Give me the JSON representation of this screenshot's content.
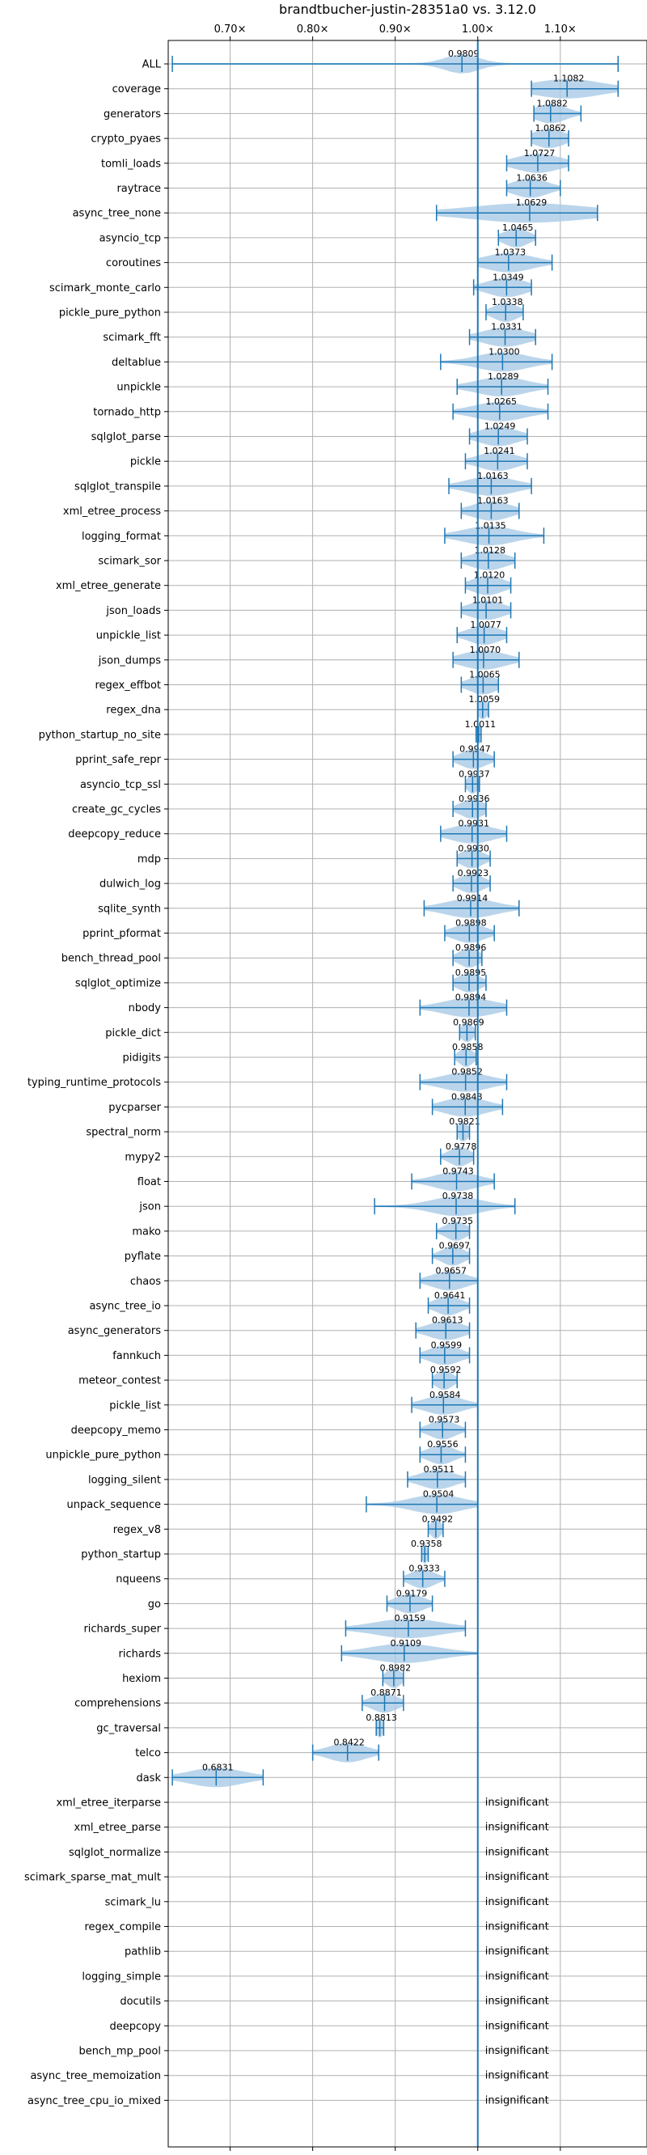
{
  "chart_data": {
    "type": "violin",
    "title": "brandtbucher-justin-28351a0 vs. 3.12.0",
    "xlabel": "",
    "ylabel": "",
    "xlim": [
      0.625,
      1.205
    ],
    "xticks": [
      0.7,
      0.8,
      0.9,
      1.0,
      1.1
    ],
    "xtick_labels": [
      "0.70×",
      "0.80×",
      "0.90×",
      "1.00×",
      "1.10×"
    ],
    "reference_line": 1.0,
    "grid": true,
    "insignificant_label": "insignificant",
    "colors": {
      "violin": "#a9cbe6",
      "line": "#1f77b4",
      "grid": "#b0b0b0"
    },
    "benchmarks": [
      {
        "name": "ALL",
        "mean": 0.9809,
        "min": 0.63,
        "max": 1.17,
        "spread": 0.02,
        "label": "0.9809"
      },
      {
        "name": "coverage",
        "mean": 1.1082,
        "min": 1.065,
        "max": 1.17,
        "spread": 0.04,
        "label": "1.1082"
      },
      {
        "name": "generators",
        "mean": 1.0882,
        "min": 1.068,
        "max": 1.125,
        "spread": 0.018,
        "label": "1.0882"
      },
      {
        "name": "crypto_pyaes",
        "mean": 1.0862,
        "min": 1.065,
        "max": 1.11,
        "spread": 0.018,
        "label": "1.0862"
      },
      {
        "name": "tomli_loads",
        "mean": 1.0727,
        "min": 1.035,
        "max": 1.11,
        "spread": 0.025,
        "label": "1.0727"
      },
      {
        "name": "raytrace",
        "mean": 1.0636,
        "min": 1.035,
        "max": 1.1,
        "spread": 0.02,
        "label": "1.0636"
      },
      {
        "name": "async_tree_none",
        "mean": 1.0629,
        "min": 0.95,
        "max": 1.145,
        "spread": 0.07,
        "label": "1.0629"
      },
      {
        "name": "asyncio_tcp",
        "mean": 1.0465,
        "min": 1.025,
        "max": 1.07,
        "spread": 0.014,
        "label": "1.0465"
      },
      {
        "name": "coroutines",
        "mean": 1.0373,
        "min": 1.0,
        "max": 1.09,
        "spread": 0.028,
        "label": "1.0373"
      },
      {
        "name": "scimark_monte_carlo",
        "mean": 1.0349,
        "min": 0.995,
        "max": 1.065,
        "spread": 0.022,
        "label": "1.0349"
      },
      {
        "name": "pickle_pure_python",
        "mean": 1.0338,
        "min": 1.01,
        "max": 1.055,
        "spread": 0.014,
        "label": "1.0338"
      },
      {
        "name": "scimark_fft",
        "mean": 1.0331,
        "min": 0.99,
        "max": 1.07,
        "spread": 0.025,
        "label": "1.0331"
      },
      {
        "name": "deltablue",
        "mean": 1.03,
        "min": 0.955,
        "max": 1.09,
        "spread": 0.03,
        "label": "1.0300"
      },
      {
        "name": "unpickle",
        "mean": 1.0289,
        "min": 0.975,
        "max": 1.085,
        "spread": 0.03,
        "label": "1.0289"
      },
      {
        "name": "tornado_http",
        "mean": 1.0265,
        "min": 0.97,
        "max": 1.085,
        "spread": 0.03,
        "label": "1.0265"
      },
      {
        "name": "sqlglot_parse",
        "mean": 1.0249,
        "min": 0.99,
        "max": 1.06,
        "spread": 0.022,
        "label": "1.0249"
      },
      {
        "name": "pickle",
        "mean": 1.0241,
        "min": 0.985,
        "max": 1.06,
        "spread": 0.022,
        "label": "1.0241"
      },
      {
        "name": "sqlglot_transpile",
        "mean": 1.0163,
        "min": 0.965,
        "max": 1.065,
        "spread": 0.028,
        "label": "1.0163"
      },
      {
        "name": "xml_etree_process",
        "mean": 1.0163,
        "min": 0.98,
        "max": 1.05,
        "spread": 0.022,
        "label": "1.0163"
      },
      {
        "name": "logging_format",
        "mean": 1.0135,
        "min": 0.96,
        "max": 1.08,
        "spread": 0.03,
        "label": "1.0135"
      },
      {
        "name": "scimark_sor",
        "mean": 1.0128,
        "min": 0.98,
        "max": 1.045,
        "spread": 0.02,
        "label": "1.0128"
      },
      {
        "name": "xml_etree_generate",
        "mean": 1.012,
        "min": 0.985,
        "max": 1.04,
        "spread": 0.018,
        "label": "1.0120"
      },
      {
        "name": "json_loads",
        "mean": 1.0101,
        "min": 0.98,
        "max": 1.04,
        "spread": 0.02,
        "label": "1.0101"
      },
      {
        "name": "unpickle_list",
        "mean": 1.0077,
        "min": 0.975,
        "max": 1.035,
        "spread": 0.018,
        "label": "1.0077"
      },
      {
        "name": "json_dumps",
        "mean": 1.007,
        "min": 0.97,
        "max": 1.05,
        "spread": 0.025,
        "label": "1.0070"
      },
      {
        "name": "regex_effbot",
        "mean": 1.0065,
        "min": 0.98,
        "max": 1.025,
        "spread": 0.016,
        "label": "1.0065"
      },
      {
        "name": "regex_dna",
        "mean": 1.0059,
        "min": 1.0,
        "max": 1.013,
        "spread": 0.006,
        "label": "1.0059"
      },
      {
        "name": "python_startup_no_site",
        "mean": 1.0011,
        "min": 0.998,
        "max": 1.004,
        "spread": 0.003,
        "label": "1.0011"
      },
      {
        "name": "pprint_safe_repr",
        "mean": 0.9947,
        "min": 0.97,
        "max": 1.02,
        "spread": 0.015,
        "label": "0.9947"
      },
      {
        "name": "asyncio_tcp_ssl",
        "mean": 0.9937,
        "min": 0.985,
        "max": 1.002,
        "spread": 0.006,
        "label": "0.9937"
      },
      {
        "name": "create_gc_cycles",
        "mean": 0.9936,
        "min": 0.97,
        "max": 1.01,
        "spread": 0.014,
        "label": "0.9936"
      },
      {
        "name": "deepcopy_reduce",
        "mean": 0.9931,
        "min": 0.955,
        "max": 1.035,
        "spread": 0.025,
        "label": "0.9931"
      },
      {
        "name": "mdp",
        "mean": 0.993,
        "min": 0.975,
        "max": 1.015,
        "spread": 0.013,
        "label": "0.9930"
      },
      {
        "name": "dulwich_log",
        "mean": 0.9923,
        "min": 0.97,
        "max": 1.015,
        "spread": 0.014,
        "label": "0.9923"
      },
      {
        "name": "sqlite_synth",
        "mean": 0.9914,
        "min": 0.935,
        "max": 1.05,
        "spread": 0.03,
        "label": "0.9914"
      },
      {
        "name": "pprint_pformat",
        "mean": 0.9898,
        "min": 0.96,
        "max": 1.02,
        "spread": 0.018,
        "label": "0.9898"
      },
      {
        "name": "bench_thread_pool",
        "mean": 0.9896,
        "min": 0.97,
        "max": 1.005,
        "spread": 0.012,
        "label": "0.9896"
      },
      {
        "name": "sqlglot_optimize",
        "mean": 0.9895,
        "min": 0.97,
        "max": 1.01,
        "spread": 0.013,
        "label": "0.9895"
      },
      {
        "name": "nbody",
        "mean": 0.9894,
        "min": 0.93,
        "max": 1.035,
        "spread": 0.03,
        "label": "0.9894"
      },
      {
        "name": "pickle_dict",
        "mean": 0.9869,
        "min": 0.978,
        "max": 0.997,
        "spread": 0.007,
        "label": "0.9869"
      },
      {
        "name": "pidigits",
        "mean": 0.9858,
        "min": 0.972,
        "max": 0.998,
        "spread": 0.008,
        "label": "0.9858"
      },
      {
        "name": "typing_runtime_protocols",
        "mean": 0.9852,
        "min": 0.93,
        "max": 1.035,
        "spread": 0.028,
        "label": "0.9852"
      },
      {
        "name": "pycparser",
        "mean": 0.9848,
        "min": 0.945,
        "max": 1.03,
        "spread": 0.025,
        "label": "0.9848"
      },
      {
        "name": "spectral_norm",
        "mean": 0.9821,
        "min": 0.975,
        "max": 0.99,
        "spread": 0.006,
        "label": "0.9821"
      },
      {
        "name": "mypy2",
        "mean": 0.9778,
        "min": 0.955,
        "max": 0.995,
        "spread": 0.012,
        "label": "0.9778"
      },
      {
        "name": "float",
        "mean": 0.9743,
        "min": 0.92,
        "max": 1.02,
        "spread": 0.025,
        "label": "0.9743"
      },
      {
        "name": "json",
        "mean": 0.9738,
        "min": 0.875,
        "max": 1.045,
        "spread": 0.03,
        "label": "0.9738"
      },
      {
        "name": "mako",
        "mean": 0.9735,
        "min": 0.95,
        "max": 0.99,
        "spread": 0.012,
        "label": "0.9735"
      },
      {
        "name": "pyflate",
        "mean": 0.9697,
        "min": 0.945,
        "max": 0.99,
        "spread": 0.013,
        "label": "0.9697"
      },
      {
        "name": "chaos",
        "mean": 0.9657,
        "min": 0.93,
        "max": 1.0,
        "spread": 0.02,
        "label": "0.9657"
      },
      {
        "name": "async_tree_io",
        "mean": 0.9641,
        "min": 0.94,
        "max": 0.99,
        "spread": 0.015,
        "label": "0.9641"
      },
      {
        "name": "async_generators",
        "mean": 0.9613,
        "min": 0.925,
        "max": 0.99,
        "spread": 0.02,
        "label": "0.9613"
      },
      {
        "name": "fannkuch",
        "mean": 0.9599,
        "min": 0.93,
        "max": 0.99,
        "spread": 0.018,
        "label": "0.9599"
      },
      {
        "name": "meteor_contest",
        "mean": 0.9592,
        "min": 0.945,
        "max": 0.975,
        "spread": 0.01,
        "label": "0.9592"
      },
      {
        "name": "pickle_list",
        "mean": 0.9584,
        "min": 0.92,
        "max": 1.0,
        "spread": 0.022,
        "label": "0.9584"
      },
      {
        "name": "deepcopy_memo",
        "mean": 0.9573,
        "min": 0.93,
        "max": 0.985,
        "spread": 0.015,
        "label": "0.9573"
      },
      {
        "name": "unpickle_pure_python",
        "mean": 0.9556,
        "min": 0.93,
        "max": 0.985,
        "spread": 0.015,
        "label": "0.9556"
      },
      {
        "name": "logging_silent",
        "mean": 0.9511,
        "min": 0.915,
        "max": 0.985,
        "spread": 0.02,
        "label": "0.9511"
      },
      {
        "name": "unpack_sequence",
        "mean": 0.9504,
        "min": 0.865,
        "max": 1.0,
        "spread": 0.03,
        "label": "0.9504"
      },
      {
        "name": "regex_v8",
        "mean": 0.9492,
        "min": 0.94,
        "max": 0.958,
        "spread": 0.006,
        "label": "0.9492"
      },
      {
        "name": "python_startup",
        "mean": 0.9358,
        "min": 0.932,
        "max": 0.94,
        "spread": 0.003,
        "label": "0.9358"
      },
      {
        "name": "nqueens",
        "mean": 0.9333,
        "min": 0.91,
        "max": 0.96,
        "spread": 0.014,
        "label": "0.9333"
      },
      {
        "name": "go",
        "mean": 0.9179,
        "min": 0.89,
        "max": 0.945,
        "spread": 0.016,
        "label": "0.9179"
      },
      {
        "name": "richards_super",
        "mean": 0.9159,
        "min": 0.84,
        "max": 0.985,
        "spread": 0.04,
        "label": "0.9159"
      },
      {
        "name": "richards",
        "mean": 0.9109,
        "min": 0.835,
        "max": 1.0,
        "spread": 0.04,
        "label": "0.9109"
      },
      {
        "name": "hexiom",
        "mean": 0.8982,
        "min": 0.885,
        "max": 0.91,
        "spread": 0.009,
        "label": "0.8982"
      },
      {
        "name": "comprehensions",
        "mean": 0.8871,
        "min": 0.86,
        "max": 0.91,
        "spread": 0.015,
        "label": "0.8871"
      },
      {
        "name": "gc_traversal",
        "mean": 0.8813,
        "min": 0.877,
        "max": 0.886,
        "spread": 0.004,
        "label": "0.8813"
      },
      {
        "name": "telco",
        "mean": 0.8422,
        "min": 0.8,
        "max": 0.88,
        "spread": 0.022,
        "label": "0.8422"
      },
      {
        "name": "dask",
        "mean": 0.6831,
        "min": 0.63,
        "max": 0.74,
        "spread": 0.032,
        "label": "0.6831"
      },
      {
        "name": "xml_etree_iterparse",
        "insignificant": true
      },
      {
        "name": "xml_etree_parse",
        "insignificant": true
      },
      {
        "name": "sqlglot_normalize",
        "insignificant": true
      },
      {
        "name": "scimark_sparse_mat_mult",
        "insignificant": true
      },
      {
        "name": "scimark_lu",
        "insignificant": true
      },
      {
        "name": "regex_compile",
        "insignificant": true
      },
      {
        "name": "pathlib",
        "insignificant": true
      },
      {
        "name": "logging_simple",
        "insignificant": true
      },
      {
        "name": "docutils",
        "insignificant": true
      },
      {
        "name": "deepcopy",
        "insignificant": true
      },
      {
        "name": "bench_mp_pool",
        "insignificant": true
      },
      {
        "name": "async_tree_memoization",
        "insignificant": true
      },
      {
        "name": "async_tree_cpu_io_mixed",
        "insignificant": true
      }
    ]
  }
}
